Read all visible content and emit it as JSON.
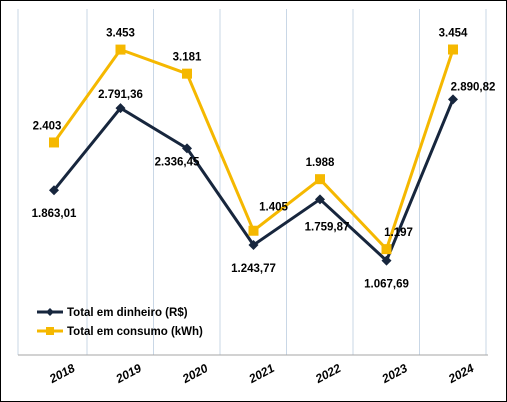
{
  "chart_data": {
    "type": "line",
    "categories": [
      "2018",
      "2019",
      "2020",
      "2021",
      "2022",
      "2023",
      "2024"
    ],
    "series": [
      {
        "name": "Total em dinheiro (R$)",
        "color": "#17263d",
        "marker": "diamond",
        "values": [
          1863.01,
          2791.36,
          2336.45,
          1243.77,
          1759.87,
          1067.69,
          2890.82
        ],
        "labels": [
          "1.863,01",
          "2.791,36",
          "2.336,45",
          "1.243,77",
          "1.759,87",
          "1.067,69",
          "2.890,82"
        ]
      },
      {
        "name": "Total em consumo (kWh)",
        "color": "#f5b800",
        "marker": "square",
        "values": [
          2403,
          3453,
          3181,
          1405,
          1988,
          1197,
          3454
        ],
        "labels": [
          "2.403",
          "3.453",
          "3.181",
          "1.405",
          "1.988",
          "1.197",
          "3.454"
        ]
      }
    ],
    "ylim": [
      0,
      3700
    ],
    "grid": "vertical",
    "legend_position": "bottom-left"
  }
}
